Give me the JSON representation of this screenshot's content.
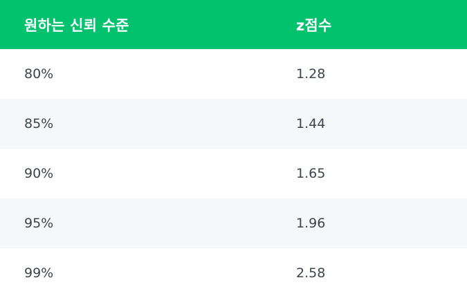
{
  "table": {
    "headers": [
      "원하는 신뢰 수준",
      "z점수"
    ],
    "rows": [
      [
        "80%",
        "1.28"
      ],
      [
        "85%",
        "1.44"
      ],
      [
        "90%",
        "1.65"
      ],
      [
        "95%",
        "1.96"
      ],
      [
        "99%",
        "2.58"
      ]
    ]
  },
  "colors": {
    "header_bg": "#00c16e",
    "header_text": "#ffffff",
    "row_alt_bg": "#f6f7f9",
    "cell_text": "#3d434d"
  }
}
